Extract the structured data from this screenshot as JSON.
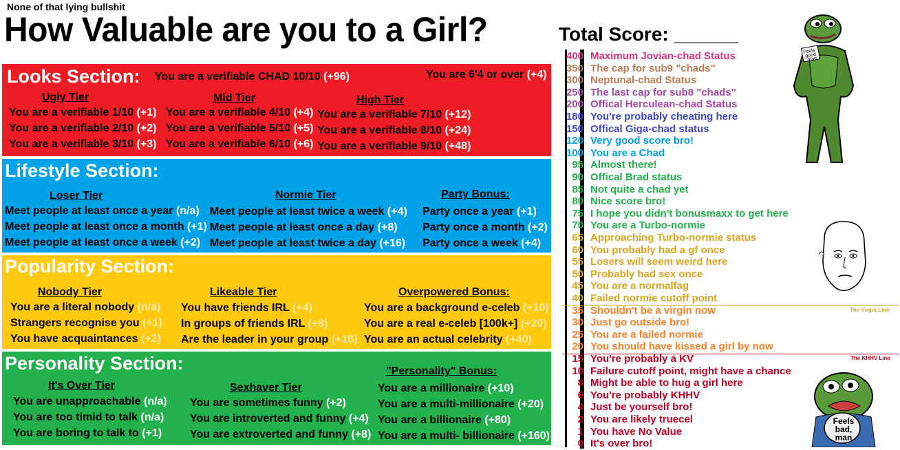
{
  "subtitle": "None of that lying bullshit",
  "title": "How Valuable are you to a Girl?",
  "total_score_label": "Total Score: ______",
  "sections": {
    "looks": {
      "title": "Looks Section:",
      "extra_1": {
        "text": "You are a verifiable CHAD 10/10",
        "pts": "(+96)"
      },
      "extra_2": {
        "text": "You are 6'4 or over",
        "pts": "(+4)"
      },
      "tiers": [
        {
          "name": "Ugly Tier",
          "items": [
            {
              "text": "You are a verifiable 1/10",
              "pts": "(+1)"
            },
            {
              "text": "You are a verifiable 2/10",
              "pts": "(+2)"
            },
            {
              "text": "You are a verifiable 3/10",
              "pts": "(+3)"
            }
          ]
        },
        {
          "name": "Mid Tier",
          "items": [
            {
              "text": "You are a verifiable 4/10",
              "pts": "(+4)"
            },
            {
              "text": "You are a verifiable 5/10",
              "pts": "(+5)"
            },
            {
              "text": "You are a verifiable 6/10",
              "pts": "(+6)"
            }
          ]
        },
        {
          "name": "High Tier",
          "items": [
            {
              "text": "You are a verifiable 7/10",
              "pts": "(+12)"
            },
            {
              "text": "You are a verifiable 8/10",
              "pts": "(+24)"
            },
            {
              "text": "You are a verifiable 9/10",
              "pts": "(+48)"
            }
          ]
        }
      ]
    },
    "lifestyle": {
      "title": "Lifestyle Section:",
      "tiers": [
        {
          "name": "Loser Tier",
          "items": [
            {
              "text": "Meet people at least once a year",
              "pts": "(n/a)"
            },
            {
              "text": "Meet people at least once a month",
              "pts": "(+1)"
            },
            {
              "text": "Meet people at least once a week",
              "pts": "(+2)"
            }
          ]
        },
        {
          "name": "Normie Tier",
          "items": [
            {
              "text": "Meet people at least twice a week",
              "pts": "(+4)"
            },
            {
              "text": "Meet people at least once a day",
              "pts": "(+8)"
            },
            {
              "text": "Meet people at least twice a day",
              "pts": "(+16)"
            }
          ]
        },
        {
          "name": "Party Bonus:",
          "items": [
            {
              "text": "Party once a year",
              "pts": "(+1)"
            },
            {
              "text": "Party once a month",
              "pts": "(+2)"
            },
            {
              "text": "Party once a week",
              "pts": "(+4)"
            }
          ]
        }
      ]
    },
    "popularity": {
      "title": "Popularity Section:",
      "tiers": [
        {
          "name": "Nobody Tier",
          "items": [
            {
              "text": "You are a literal nobody",
              "pts": "(n/a)"
            },
            {
              "text": "Strangers recognise you",
              "pts": "(+1)"
            },
            {
              "text": "You have acquaintances",
              "pts": "(+2)"
            }
          ]
        },
        {
          "name": "Likeable Tier",
          "items": [
            {
              "text": "You have friends IRL",
              "pts": "(+4)"
            },
            {
              "text": "In groups of friends IRL",
              "pts": "(+8)"
            },
            {
              "text": "Are the leader in your group",
              "pts": "(+16)"
            }
          ]
        },
        {
          "name": "Overpowered Bonus:",
          "items": [
            {
              "text": "You are a background e-celeb",
              "pts": "(+10)"
            },
            {
              "text": "You are a real e-celeb [100k+]",
              "pts": "(+20)"
            },
            {
              "text": "You are an actual celebrity",
              "pts": "(+40)"
            }
          ]
        }
      ]
    },
    "personality": {
      "title": "Personality Section:",
      "tiers": [
        {
          "name": "It's Over Tier",
          "items": [
            {
              "text": "You are unapproachable",
              "pts": "(n/a)"
            },
            {
              "text": "You are too timid to talk",
              "pts": "(n/a)"
            },
            {
              "text": "You are boring to talk to",
              "pts": "(+1)"
            }
          ]
        },
        {
          "name": "Sexhaver Tier",
          "items": [
            {
              "text": "You are sometimes funny",
              "pts": "(+2)"
            },
            {
              "text": "You are introverted and funny",
              "pts": "(+4)"
            },
            {
              "text": "You are extroverted and funny",
              "pts": "(+8)"
            }
          ]
        },
        {
          "name": "\"Personality\" Bonus:",
          "items": [
            {
              "text": "You are a millionaire",
              "pts": "(+10)"
            },
            {
              "text": "You are a multi-millionaire",
              "pts": "(+20)"
            },
            {
              "text": "You are a billionaire",
              "pts": "(+80)"
            },
            {
              "text": "You are a multi- billionaire",
              "pts": "(+160)"
            }
          ]
        }
      ]
    }
  },
  "colors": {
    "looks": "#ee1c24",
    "lifestyle": "#00a2e8",
    "popularity": "#ffc90e",
    "personality": "#22b14c"
  },
  "scores": [
    {
      "n": "400",
      "label": "Maximum Jovian-chad Status",
      "color": "#d63384"
    },
    {
      "n": "350",
      "label": "The cap for sub9 \"chads\"",
      "color": "#b97a57"
    },
    {
      "n": "300",
      "label": "Neptunal-chad Status",
      "color": "#b97a57"
    },
    {
      "n": "250",
      "label": "The last cap for sub8 \"chads\"",
      "color": "#a349a4"
    },
    {
      "n": "200",
      "label": "Offical Herculean-chad Status",
      "color": "#a349a4"
    },
    {
      "n": "180",
      "label": "You're probably cheating here",
      "color": "#3f48cc"
    },
    {
      "n": "150",
      "label": "Offical Giga-chad status",
      "color": "#3f48cc"
    },
    {
      "n": "120",
      "label": "Very good score bro!",
      "color": "#00a2e8"
    },
    {
      "n": "100",
      "label": "You are a Chad",
      "color": "#00a2e8"
    },
    {
      "n": "95",
      "label": "Almost there!",
      "color": "#22b14c"
    },
    {
      "n": "90",
      "label": "Offical Brad status",
      "color": "#22b14c"
    },
    {
      "n": "85",
      "label": "Not quite a chad yet",
      "color": "#22b14c"
    },
    {
      "n": "80",
      "label": "Nice score bro!",
      "color": "#22b14c"
    },
    {
      "n": "75",
      "label": "I hope you didn't bonusmaxx to get here",
      "color": "#22b14c"
    },
    {
      "n": "70",
      "label": "You are a Turbo-normie",
      "color": "#22b14c"
    },
    {
      "n": "65",
      "label": "Approaching Turbo-normie status",
      "color": "#d9a520"
    },
    {
      "n": "60",
      "label": "You probably had a gf once",
      "color": "#d9a520"
    },
    {
      "n": "55",
      "label": "Losers will seem weird here",
      "color": "#d9a520"
    },
    {
      "n": "50",
      "label": "Probably had sex once",
      "color": "#d9a520"
    },
    {
      "n": "45",
      "label": "You are a normalfag",
      "color": "#d9a520"
    },
    {
      "n": "40",
      "label": "Failed normie cutoff point",
      "color": "#d9a520"
    },
    {
      "n": "35",
      "label": "Shouldn't be a virgin now",
      "color": "#ff7f27"
    },
    {
      "n": "30",
      "label": "Just go outside bro!",
      "color": "#ff7f27"
    },
    {
      "n": "25",
      "label": "You are a failed normie",
      "color": "#ff7f27"
    },
    {
      "n": "20",
      "label": "You should have kissed a girl by now",
      "color": "#ff7f27"
    },
    {
      "n": "15",
      "label": "You're probably a KV",
      "color": "#c00020"
    },
    {
      "n": "10",
      "label": "Failure cutoff point, might have a chance",
      "color": "#c00020"
    },
    {
      "n": "8",
      "label": "Might be able to hug a girl here",
      "color": "#c00020"
    },
    {
      "n": "6",
      "label": "You're probably KHHV",
      "color": "#c00020"
    },
    {
      "n": "4",
      "label": "Just be yourself bro!",
      "color": "#c00020"
    },
    {
      "n": "2",
      "label": "You are likely truecel",
      "color": "#c00020"
    },
    {
      "n": "1",
      "label": "You have No Value",
      "color": "#c00020"
    },
    {
      "n": "0",
      "label": "It's over bro!",
      "color": "#c00020"
    }
  ],
  "virgin_line_label": "The Virgin Line",
  "khhv_line_label": "The KHHV Line",
  "wojak_caption_top": "Feels good man",
  "wojak_caption_bottom": "Feels bad, man"
}
